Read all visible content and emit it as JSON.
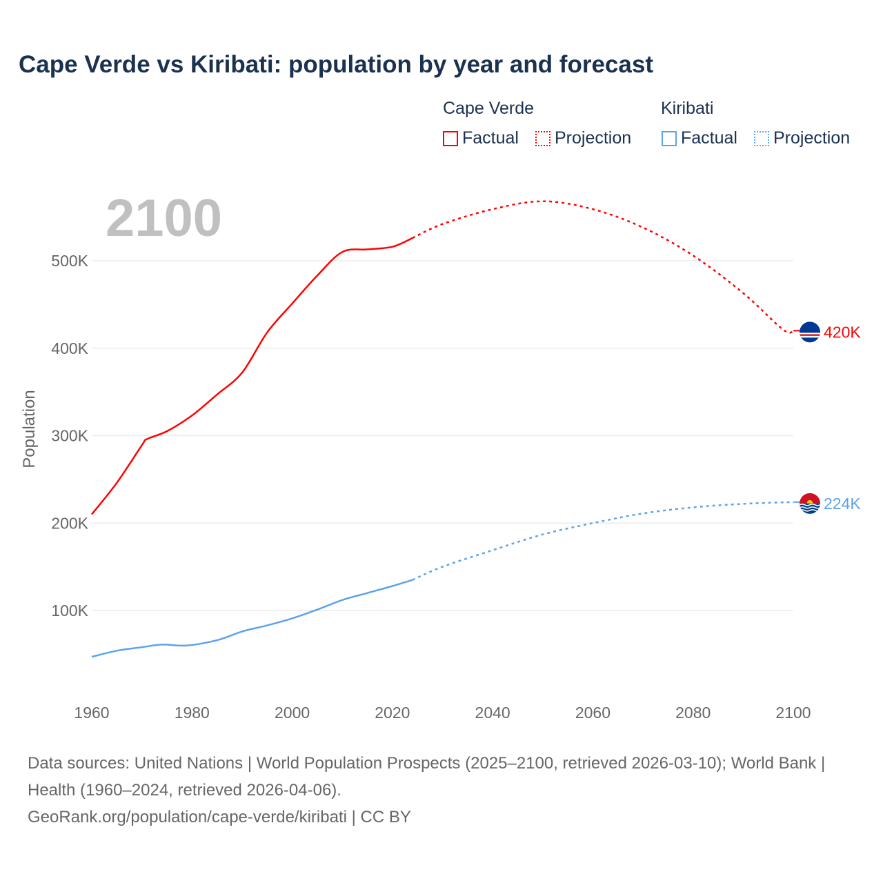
{
  "chart_data": {
    "type": "line",
    "title": "Cape Verde vs Kiribati: population by year and forecast",
    "ylabel": "Population",
    "xlabel": "",
    "xlim": [
      1960,
      2100
    ],
    "ylim": [
      0,
      560000
    ],
    "x_ticks": [
      1960,
      1980,
      2000,
      2020,
      2040,
      2060,
      2080,
      2100
    ],
    "x_tick_labels": [
      "1960",
      "1980",
      "2000",
      "2020",
      "2040",
      "2060",
      "2080",
      "2100"
    ],
    "y_ticks": [
      100000,
      200000,
      300000,
      400000,
      500000
    ],
    "y_tick_labels": [
      "100K",
      "200K",
      "300K",
      "400K",
      "500K"
    ],
    "grid": true,
    "year_overlay": "2100",
    "legend": {
      "placement": "top-right",
      "groups": [
        {
          "name": "Cape Verde",
          "factual": "Factual",
          "projection": "Projection"
        },
        {
          "name": "Kiribati",
          "factual": "Factual",
          "projection": "Projection"
        }
      ]
    },
    "series": [
      {
        "name": "Cape Verde",
        "color": "#ff0000",
        "end_label": "420K",
        "factual": {
          "x": [
            1960,
            1965,
            1970,
            1971,
            1975,
            1980,
            1985,
            1990,
            1995,
            2000,
            2005,
            2010,
            2015,
            2020,
            2024
          ],
          "y": [
            210000,
            246000,
            289000,
            296000,
            305000,
            323000,
            347000,
            372000,
            418000,
            451000,
            483000,
            510000,
            513000,
            516000,
            526000
          ]
        },
        "projection": {
          "x": [
            2024,
            2030,
            2040,
            2050,
            2060,
            2070,
            2080,
            2090,
            2098,
            2100
          ],
          "y": [
            526000,
            542000,
            559000,
            568000,
            559000,
            538000,
            506000,
            463000,
            421000,
            420000
          ]
        }
      },
      {
        "name": "Kiribati",
        "color": "#5ba3ea",
        "end_label": "224K",
        "factual": {
          "x": [
            1960,
            1965,
            1970,
            1974,
            1979,
            1985,
            1990,
            1995,
            2000,
            2005,
            2010,
            2015,
            2020,
            2024
          ],
          "y": [
            47000,
            54000,
            58000,
            61000,
            60000,
            66000,
            76000,
            83000,
            91000,
            101000,
            112000,
            120000,
            128000,
            135000
          ]
        },
        "projection": {
          "x": [
            2024,
            2030,
            2040,
            2050,
            2060,
            2070,
            2080,
            2090,
            2100
          ],
          "y": [
            135000,
            150000,
            169000,
            187000,
            200000,
            211000,
            218000,
            222000,
            224000
          ]
        }
      }
    ]
  },
  "footer": {
    "sources": "Data sources: United Nations | World Population Prospects (2025–2100, retrieved 2026-03-10); World Bank | Health (1960–2024, retrieved 2026-04-06).",
    "credit": "GeoRank.org/population/cape-verde/kiribati | CC BY"
  }
}
